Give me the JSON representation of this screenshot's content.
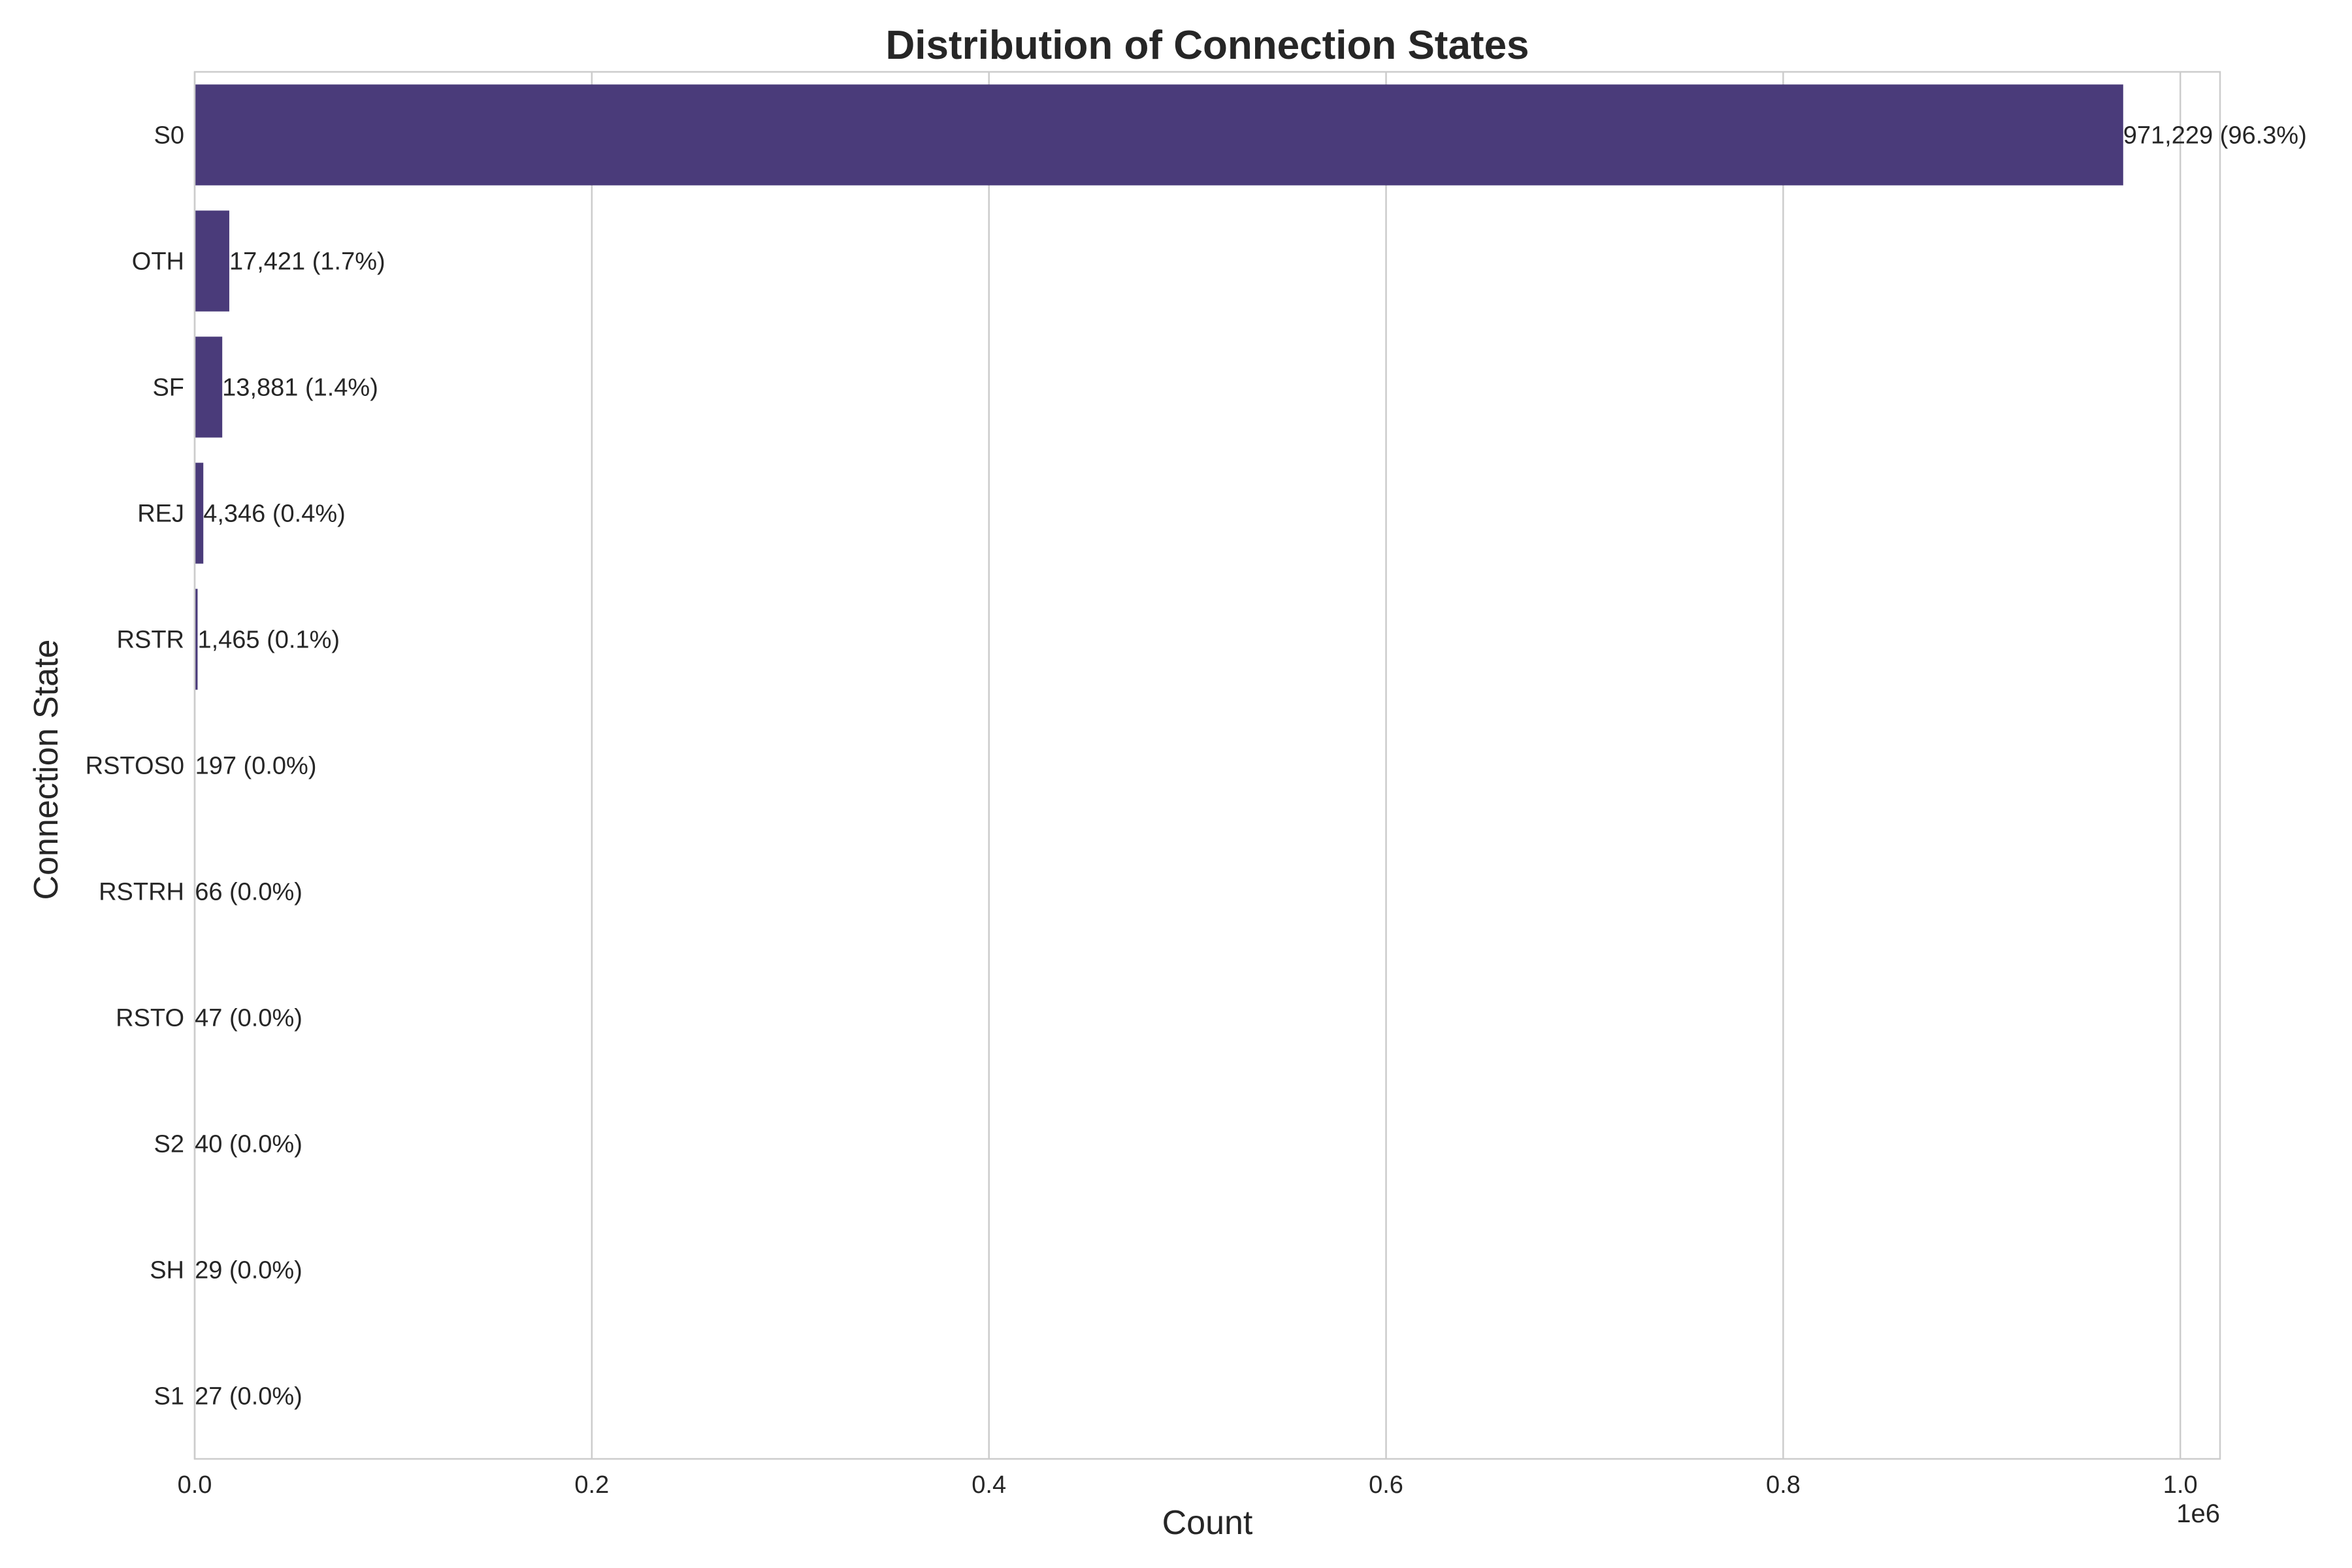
{
  "chart_data": {
    "type": "bar",
    "orientation": "horizontal",
    "title": "Distribution of Connection States",
    "xlabel": "Count",
    "ylabel": "Connection State",
    "x_offset_label": "1e6",
    "x_scale": 1000000,
    "xlim": [
      0,
      1020000
    ],
    "x_ticks": [
      0,
      200000,
      400000,
      600000,
      800000,
      1000000
    ],
    "x_tick_labels": [
      "0.0",
      "0.2",
      "0.4",
      "0.6",
      "0.8",
      "1.0"
    ],
    "grid": true,
    "bar_color": "#4a3b7a",
    "categories": [
      "S0",
      "OTH",
      "SF",
      "REJ",
      "RSTR",
      "RSTOS0",
      "RSTRH",
      "RSTO",
      "S2",
      "SH",
      "S1"
    ],
    "values": [
      971229,
      17421,
      13881,
      4346,
      1465,
      197,
      66,
      47,
      40,
      29,
      27
    ],
    "data_labels": [
      "971,229 (96.3%)",
      "17,421 (1.7%)",
      "13,881 (1.4%)",
      "4,346 (0.4%)",
      "1,465 (0.1%)",
      "197 (0.0%)",
      "66 (0.0%)",
      "47 (0.0%)",
      "40 (0.0%)",
      "29 (0.0%)",
      "27 (0.0%)"
    ]
  }
}
